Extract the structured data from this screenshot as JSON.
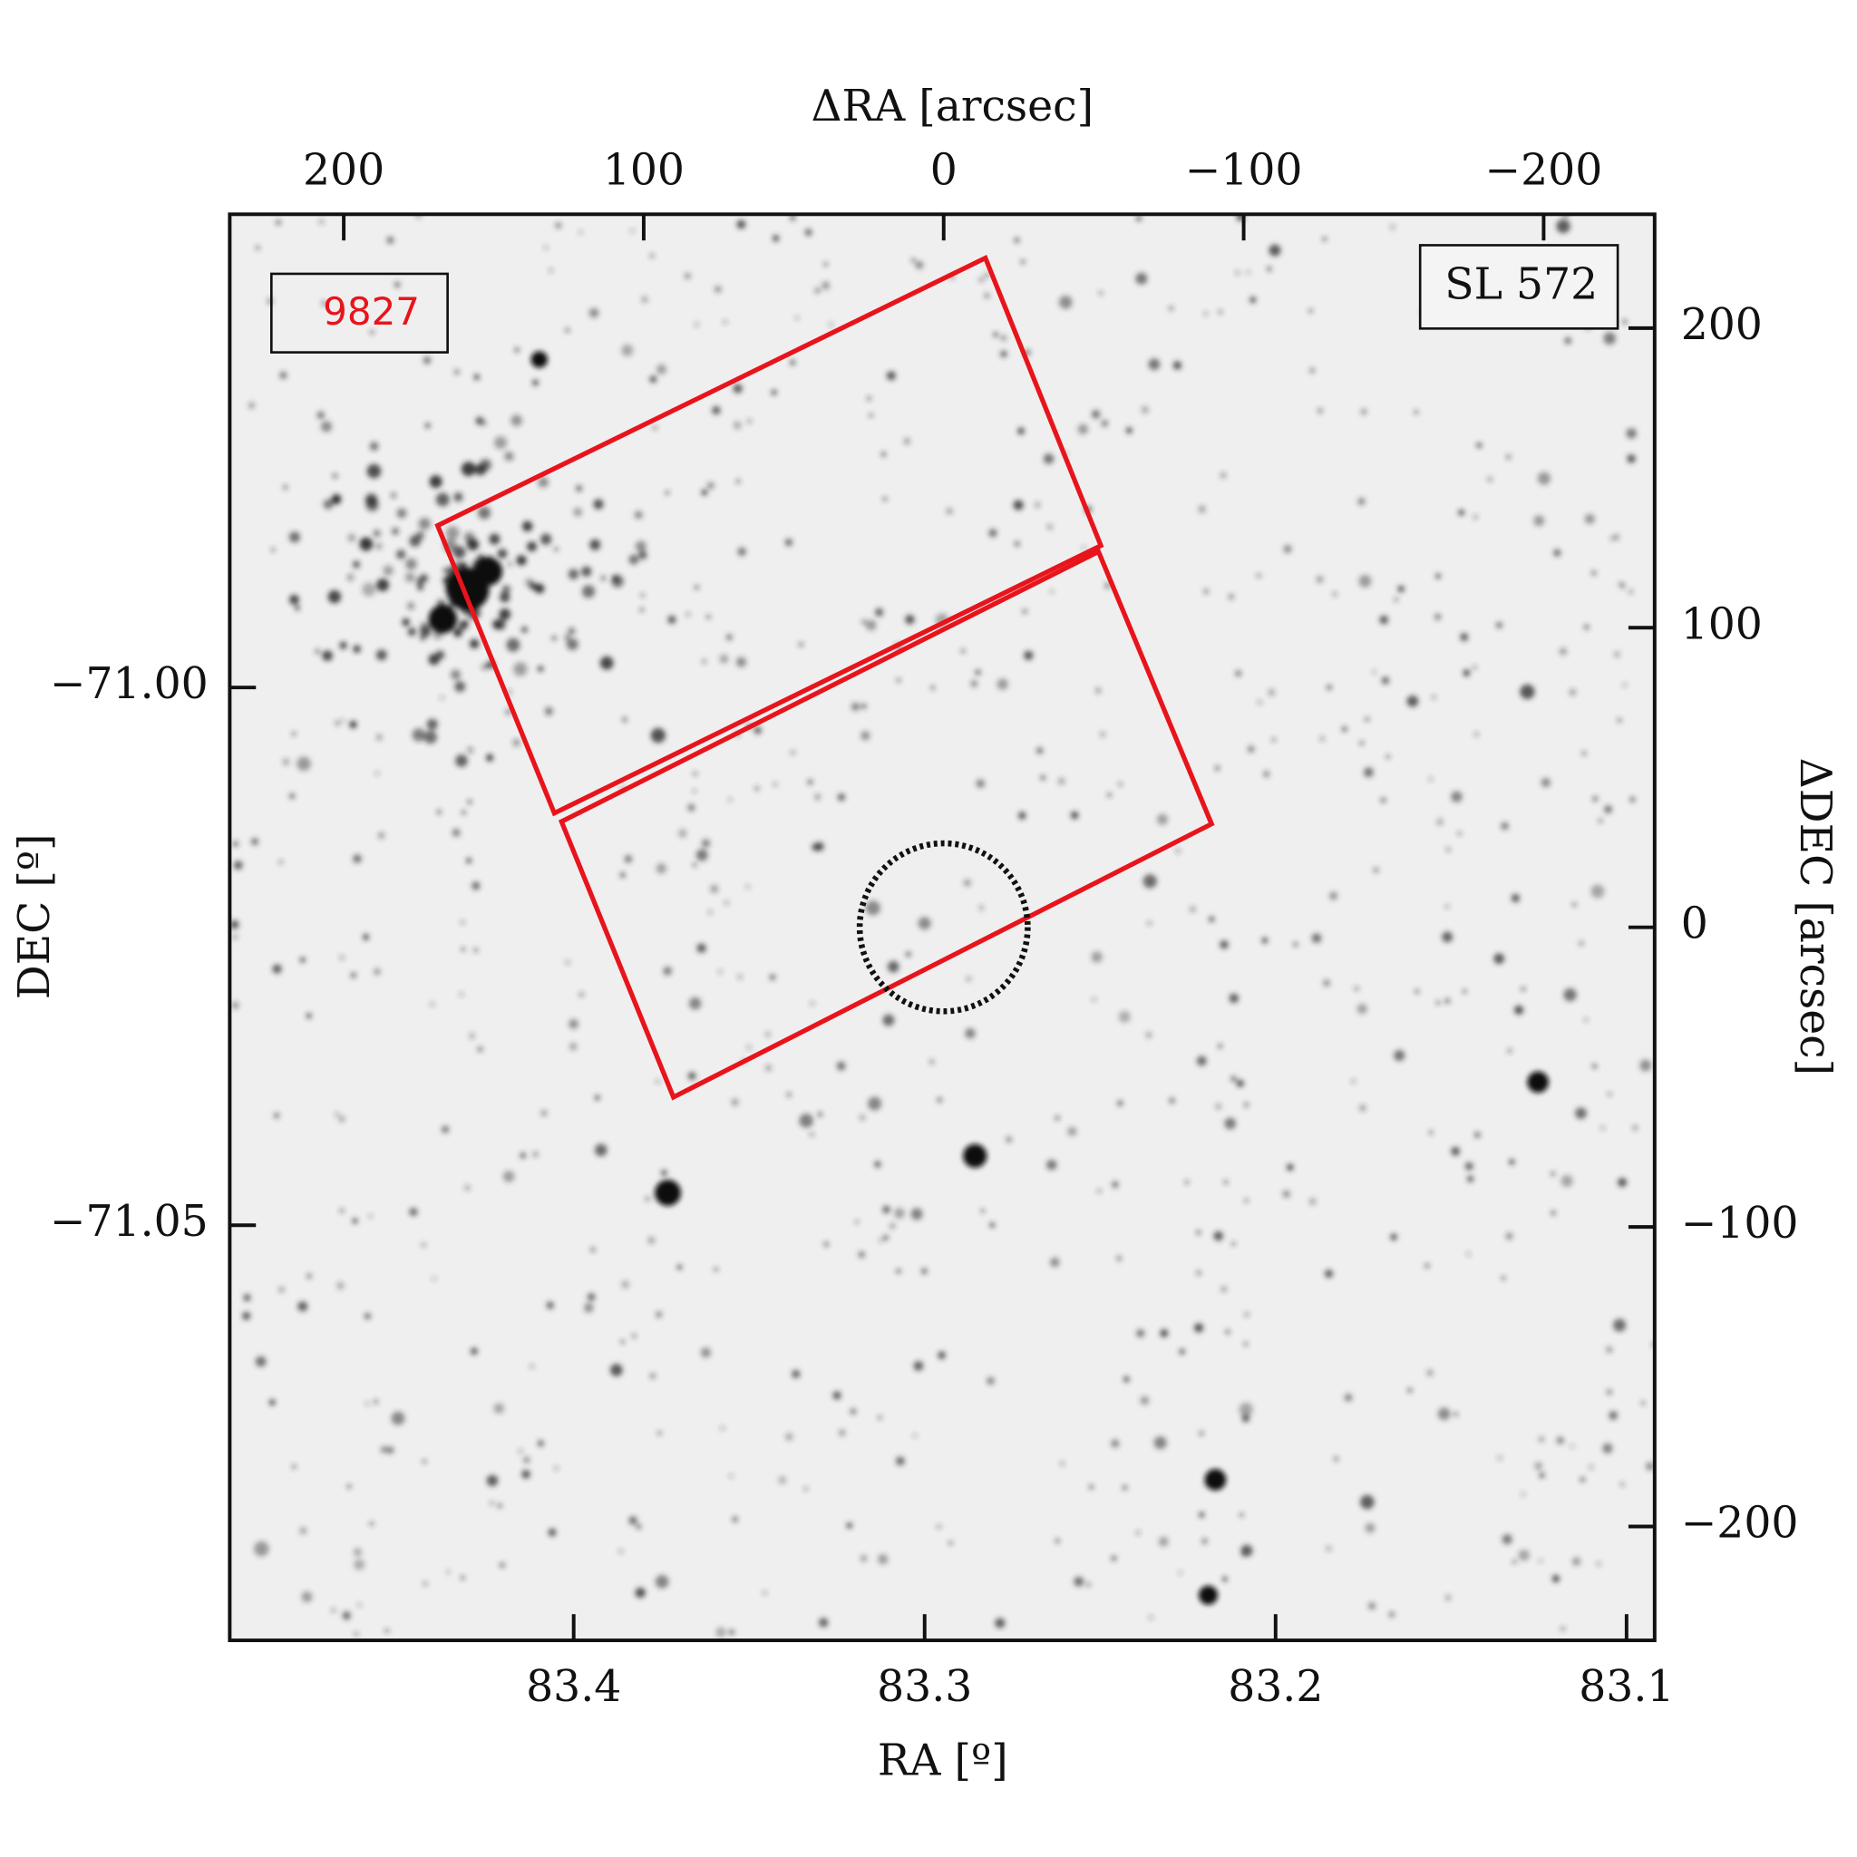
{
  "chart_data": {
    "type": "footprint",
    "x_label": "RA [º]",
    "xlim": [
      83.498,
      83.092
    ],
    "xticks": [
      83.4,
      83.3,
      83.2,
      83.1
    ],
    "y_label": "DEC [º]",
    "ylim": [
      -70.956,
      -71.0886
    ],
    "yticks": [
      {
        "value": -71.0,
        "label": "−71.00"
      },
      {
        "value": -71.05,
        "label": "−71.05"
      }
    ],
    "x2_label": "ΔRA [arcsec]",
    "x2lim": [
      238,
      -237
    ],
    "x2ticks": [
      {
        "value": 200,
        "label": "200"
      },
      {
        "value": 100,
        "label": "100"
      },
      {
        "value": 0,
        "label": "0"
      },
      {
        "value": -100,
        "label": "−100"
      },
      {
        "value": -200,
        "label": "−200"
      }
    ],
    "y2_label": "ΔDEC [arcsec]",
    "y2lim": [
      238,
      -238
    ],
    "y2ticks": [
      {
        "value": 200,
        "label": "200"
      },
      {
        "value": 100,
        "label": "100"
      },
      {
        "value": 0,
        "label": "0"
      },
      {
        "value": -100,
        "label": "−100"
      },
      {
        "value": -200,
        "label": "−200"
      }
    ],
    "footprints": [
      {
        "color": "#e8141c",
        "x": [
          168.7,
          -13.9,
          -52.4,
          129.8
        ],
        "y": [
          134.1,
          223.4,
          127.4,
          38.1
        ]
      },
      {
        "color": "#e8141c",
        "x": [
          127.4,
          -51.6,
          -89.3,
          90.1
        ],
        "y": [
          35.3,
          125.4,
          34.5,
          -56.7
        ]
      }
    ],
    "circle": {
      "x": 0,
      "y": 0,
      "r": 28
    },
    "field_label": "9827",
    "field_label_color": "#e8141c",
    "cluster_label": "SL 572"
  }
}
